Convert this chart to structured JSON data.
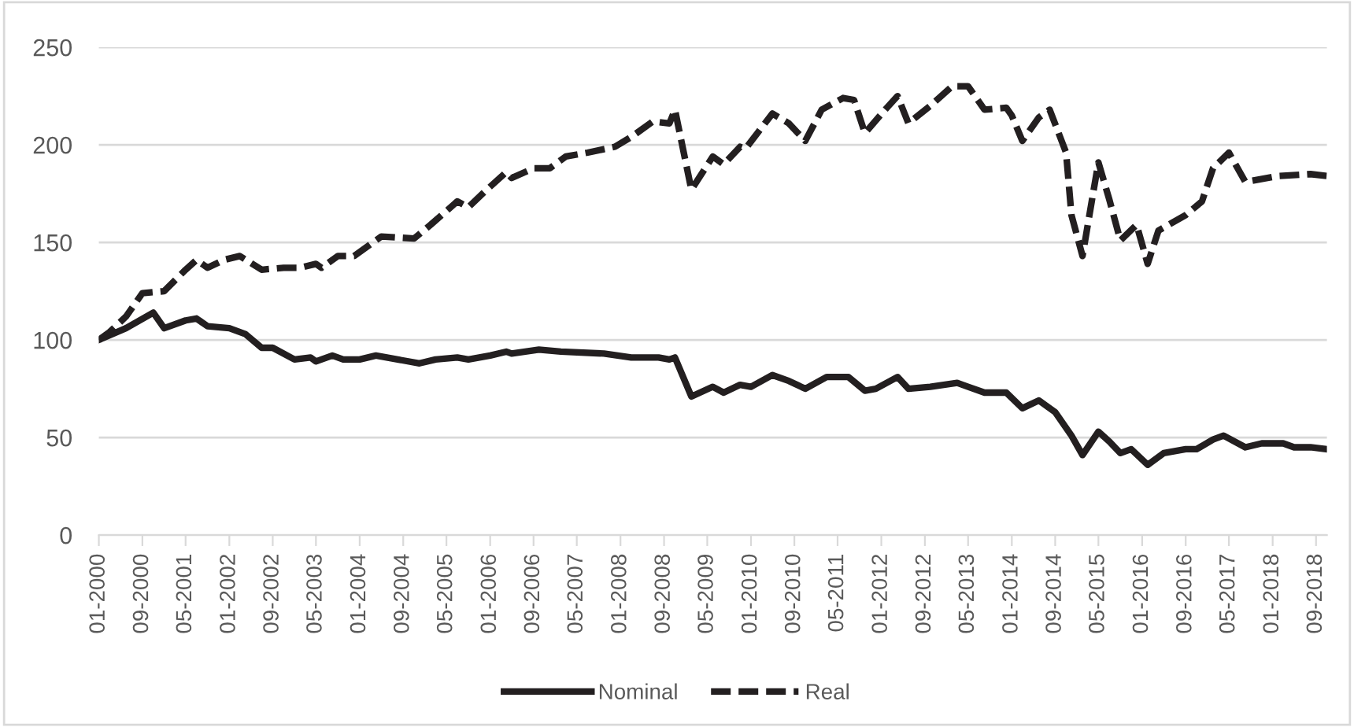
{
  "chart_data": {
    "type": "line",
    "series": [
      {
        "name": "Nominal",
        "color": "#231f20",
        "line_style": "solid",
        "x": [
          "2000-01",
          "2000-06",
          "2000-11",
          "2001-01",
          "2001-05",
          "2001-07",
          "2001-09",
          "2002-01",
          "2002-04",
          "2002-07",
          "2002-09",
          "2003-01",
          "2003-04",
          "2003-05",
          "2003-08",
          "2003-10",
          "2004-01",
          "2004-04",
          "2004-08",
          "2004-12",
          "2005-03",
          "2005-07",
          "2005-09",
          "2006-01",
          "2006-04",
          "2006-05",
          "2006-10",
          "2007-02",
          "2007-10",
          "2008-03",
          "2008-08",
          "2008-10",
          "2008-11",
          "2009-02",
          "2009-06",
          "2009-08",
          "2009-11",
          "2010-01",
          "2010-05",
          "2010-08",
          "2010-11",
          "2011-03",
          "2011-07",
          "2011-10",
          "2011-12",
          "2012-04",
          "2012-06",
          "2012-10",
          "2013-03",
          "2013-05",
          "2013-08",
          "2013-12",
          "2014-03",
          "2014-06",
          "2014-09",
          "2014-12",
          "2015-02",
          "2015-05",
          "2015-07",
          "2015-09",
          "2015-11",
          "2016-02",
          "2016-05",
          "2016-09",
          "2016-11",
          "2017-02",
          "2017-04",
          "2017-08",
          "2017-11",
          "2018-03",
          "2018-05",
          "2018-08",
          "2018-11"
        ],
        "values": [
          100,
          106,
          114,
          106,
          110,
          111,
          107,
          106,
          103,
          96,
          96,
          90,
          91,
          89,
          92,
          90,
          90,
          92,
          90,
          88,
          90,
          91,
          90,
          92,
          94,
          93,
          95,
          94,
          93,
          91,
          91,
          90,
          91,
          71,
          76,
          73,
          77,
          76,
          82,
          79,
          75,
          81,
          81,
          74,
          75,
          81,
          75,
          76,
          78,
          76,
          73,
          73,
          65,
          69,
          63,
          51,
          41,
          53,
          48,
          42,
          44,
          36,
          42,
          44,
          44,
          49,
          51,
          45,
          47,
          47,
          45,
          45,
          44
        ]
      },
      {
        "name": "Real",
        "color": "#231f20",
        "line_style": "dashed",
        "x": [
          "2000-01",
          "2000-03",
          "2000-06",
          "2000-09",
          "2001-01",
          "2001-05",
          "2001-07",
          "2001-09",
          "2001-12",
          "2002-03",
          "2002-07",
          "2002-11",
          "2003-02",
          "2003-05",
          "2003-06",
          "2003-09",
          "2003-12",
          "2004-03",
          "2004-05",
          "2004-11",
          "2005-02",
          "2005-07",
          "2005-09",
          "2005-12",
          "2006-04",
          "2006-05",
          "2006-09",
          "2006-12",
          "2007-03",
          "2007-07",
          "2007-12",
          "2008-03",
          "2008-07",
          "2008-10",
          "2008-11",
          "2009-02",
          "2009-06",
          "2009-08",
          "2009-11",
          "2009-12",
          "2010-05",
          "2010-08",
          "2010-11",
          "2011-02",
          "2011-06",
          "2011-08",
          "2011-10",
          "2012-02",
          "2012-04",
          "2012-06",
          "2012-10",
          "2013-02",
          "2013-05",
          "2013-08",
          "2013-12",
          "2014-01",
          "2014-03",
          "2014-06",
          "2014-08",
          "2014-11",
          "2014-12",
          "2015-02",
          "2015-04",
          "2015-05",
          "2015-07",
          "2015-09",
          "2015-12",
          "2016-02",
          "2016-04",
          "2016-09",
          "2016-12",
          "2017-02",
          "2017-05",
          "2017-08",
          "2018-02",
          "2018-08",
          "2018-11"
        ],
        "values": [
          100,
          104,
          112,
          124,
          125,
          136,
          141,
          137,
          141,
          143,
          136,
          137,
          137,
          139,
          137,
          143,
          143,
          149,
          153,
          152,
          159,
          171,
          168,
          176,
          186,
          183,
          188,
          188,
          194,
          196,
          199,
          204,
          212,
          211,
          218,
          177,
          194,
          190,
          199,
          198,
          216,
          211,
          202,
          218,
          224,
          223,
          206,
          219,
          225,
          211,
          220,
          230,
          230,
          218,
          219,
          215,
          202,
          214,
          218,
          196,
          164,
          143,
          175,
          191,
          172,
          151,
          159,
          139,
          156,
          164,
          171,
          188,
          196,
          181,
          184,
          185,
          184
        ]
      }
    ],
    "xlim": [
      "2000-01",
      "2018-11"
    ],
    "xticks": [
      {
        "value": "2000-01",
        "label": "01-2000"
      },
      {
        "value": "2000-09",
        "label": "09-2000"
      },
      {
        "value": "2001-05",
        "label": "05-2001"
      },
      {
        "value": "2002-01",
        "label": "01-2002"
      },
      {
        "value": "2002-09",
        "label": "09-2002"
      },
      {
        "value": "2003-05",
        "label": "05-2003"
      },
      {
        "value": "2004-01",
        "label": "01-2004"
      },
      {
        "value": "2004-09",
        "label": "09-2004"
      },
      {
        "value": "2005-05",
        "label": "05-2005"
      },
      {
        "value": "2006-01",
        "label": "01-2006"
      },
      {
        "value": "2006-09",
        "label": "09-2006"
      },
      {
        "value": "2007-05",
        "label": "05-2007"
      },
      {
        "value": "2008-01",
        "label": "01-2008"
      },
      {
        "value": "2008-09",
        "label": "09-2008"
      },
      {
        "value": "2009-05",
        "label": "05-2009"
      },
      {
        "value": "2010-01",
        "label": "01-2010"
      },
      {
        "value": "2010-09",
        "label": "09-2010"
      },
      {
        "value": "2011-05",
        "label": "05-2011"
      },
      {
        "value": "2012-01",
        "label": "01-2012"
      },
      {
        "value": "2012-09",
        "label": "09-2012"
      },
      {
        "value": "2013-05",
        "label": "05-2013"
      },
      {
        "value": "2014-01",
        "label": "01-2014"
      },
      {
        "value": "2014-09",
        "label": "09-2014"
      },
      {
        "value": "2015-05",
        "label": "05-2015"
      },
      {
        "value": "2016-01",
        "label": "01-2016"
      },
      {
        "value": "2016-09",
        "label": "09-2016"
      },
      {
        "value": "2017-05",
        "label": "05-2017"
      },
      {
        "value": "2018-01",
        "label": "01-2018"
      },
      {
        "value": "2018-09",
        "label": "09-2018"
      }
    ],
    "ylim": [
      0,
      250
    ],
    "yticks": [
      0,
      50,
      100,
      150,
      200,
      250
    ],
    "grid": "y",
    "legend": "bottom"
  }
}
